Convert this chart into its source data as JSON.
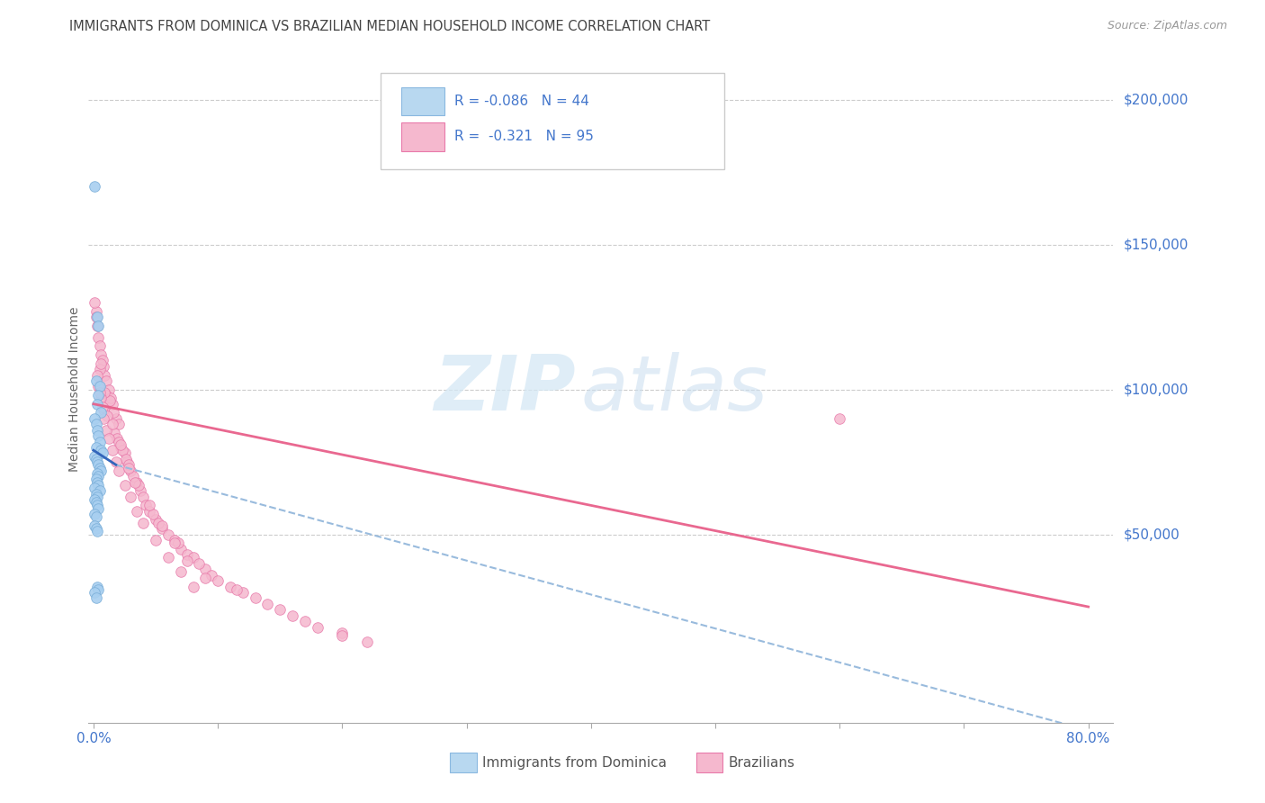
{
  "title": "IMMIGRANTS FROM DOMINICA VS BRAZILIAN MEDIAN HOUSEHOLD INCOME CORRELATION CHART",
  "source": "Source: ZipAtlas.com",
  "ylabel": "Median Household Income",
  "ymax": 215000,
  "ymin": -15000,
  "xmin": -0.004,
  "xmax": 0.82,
  "dominica_color": "#a8cff0",
  "dominica_edge": "#7aaed8",
  "brazilian_color": "#f5b8ce",
  "brazilian_edge": "#e87aaa",
  "trendline_dominica_solid_color": "#3366bb",
  "trendline_dominica_dash_color": "#99bbdd",
  "trendline_brazilian_color": "#e8608a",
  "grid_color": "#cccccc",
  "axis_color": "#aaaaaa",
  "tick_label_color": "#4477cc",
  "title_color": "#444444",
  "legend_text_color": "#4477cc",
  "source_color": "#999999"
}
